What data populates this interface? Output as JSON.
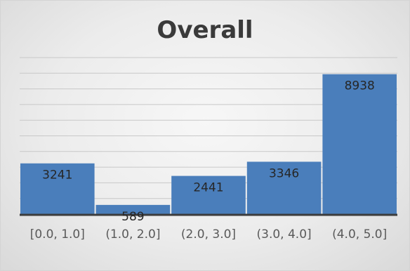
{
  "chart_data": {
    "type": "bar",
    "title": "Overall",
    "categories": [
      "[0.0, 1.0]",
      "(1.0, 2.0]",
      "(2.0, 3.0]",
      "(3.0, 4.0]",
      "(4.0, 5.0]"
    ],
    "values": [
      3241,
      589,
      2441,
      3346,
      8938
    ],
    "xlabel": "",
    "ylabel": "",
    "ylim": [
      0,
      10000
    ],
    "grid": true,
    "legend": "none",
    "bar_color": "#4a7ebb",
    "gridline_color": "#c8c8c8",
    "axis_color": "#3c3c3c"
  }
}
